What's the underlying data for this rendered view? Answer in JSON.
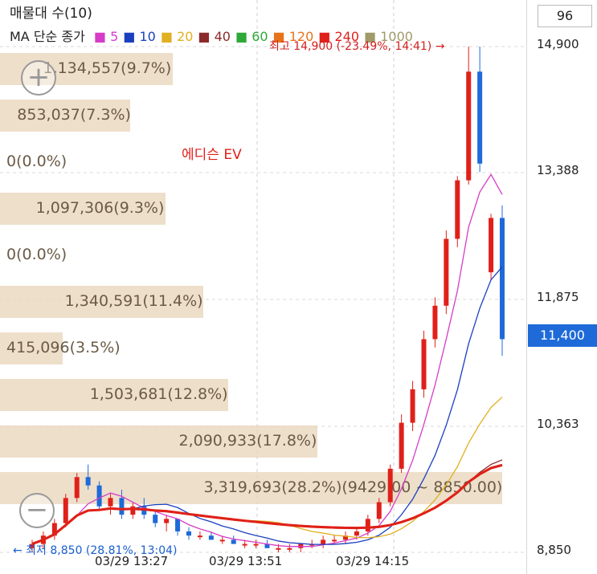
{
  "header": {
    "title": "매물대 수(10)"
  },
  "legend": {
    "label": "MA 단순 종가",
    "items": [
      {
        "name": "5",
        "color": "#d63cc8"
      },
      {
        "name": "10",
        "color": "#1b3fbf"
      },
      {
        "name": "20",
        "color": "#e0b020"
      },
      {
        "name": "40",
        "color": "#8b2a2a"
      },
      {
        "name": "60",
        "color": "#2ea838"
      },
      {
        "name": "120",
        "color": "#e8731a"
      },
      {
        "name": "240",
        "color": "#e0201a"
      },
      {
        "name": "1000",
        "color": "#a09a6a"
      }
    ]
  },
  "count_box": "96",
  "stock_name": "에디슨 EV",
  "high_label": "최고 14,900 (-23.49%, 14:41) →",
  "low_label": "← 최저 8,850 (28.81%, 13:04)",
  "current_price": "11,400",
  "y_axis": {
    "ticks": [
      "14,900",
      "13,388",
      "11,875",
      "10,363",
      "8,850"
    ]
  },
  "x_axis": {
    "ticks": [
      "03/29 13:27",
      "03/29 13:51",
      "03/29 14:15"
    ]
  },
  "volume_profile": [
    {
      "label": "1,134,557(9.7%)",
      "pct": 9.7
    },
    {
      "label": "853,037(7.3%)",
      "pct": 7.3
    },
    {
      "label": "0(0.0%)",
      "pct": 0.0
    },
    {
      "label": "1,097,306(9.3%)",
      "pct": 9.3
    },
    {
      "label": "0(0.0%)",
      "pct": 0.0
    },
    {
      "label": "1,340,591(11.4%)",
      "pct": 11.4
    },
    {
      "label": "415,096(3.5%)",
      "pct": 3.5
    },
    {
      "label": "1,503,681(12.8%)",
      "pct": 12.8
    },
    {
      "label": "2,090,933(17.8%)",
      "pct": 17.8
    },
    {
      "label": "3,319,693(28.2%)(9429.00 ~ 8850.00)",
      "pct": 28.2
    }
  ],
  "chart_data": {
    "type": "candlestick",
    "y_range": [
      8850,
      14900
    ],
    "candles": [
      {
        "o": 8900,
        "h": 9000,
        "l": 8850,
        "c": 8950
      },
      {
        "o": 8950,
        "h": 9100,
        "l": 8900,
        "c": 9050
      },
      {
        "o": 9050,
        "h": 9250,
        "l": 9000,
        "c": 9200
      },
      {
        "o": 9200,
        "h": 9550,
        "l": 9150,
        "c": 9500
      },
      {
        "o": 9500,
        "h": 9800,
        "l": 9450,
        "c": 9750
      },
      {
        "o": 9750,
        "h": 9900,
        "l": 9600,
        "c": 9650
      },
      {
        "o": 9650,
        "h": 9700,
        "l": 9350,
        "c": 9400
      },
      {
        "o": 9400,
        "h": 9550,
        "l": 9300,
        "c": 9500
      },
      {
        "o": 9500,
        "h": 9600,
        "l": 9250,
        "c": 9300
      },
      {
        "o": 9300,
        "h": 9450,
        "l": 9250,
        "c": 9400
      },
      {
        "o": 9400,
        "h": 9500,
        "l": 9250,
        "c": 9300
      },
      {
        "o": 9300,
        "h": 9350,
        "l": 9150,
        "c": 9200
      },
      {
        "o": 9200,
        "h": 9300,
        "l": 9100,
        "c": 9250
      },
      {
        "o": 9250,
        "h": 9250,
        "l": 9050,
        "c": 9100
      },
      {
        "o": 9100,
        "h": 9150,
        "l": 9000,
        "c": 9050
      },
      {
        "o": 9050,
        "h": 9100,
        "l": 9000,
        "c": 9050
      },
      {
        "o": 9050,
        "h": 9100,
        "l": 9000,
        "c": 9000
      },
      {
        "o": 9000,
        "h": 9050,
        "l": 8950,
        "c": 9000
      },
      {
        "o": 9000,
        "h": 9050,
        "l": 8950,
        "c": 8950
      },
      {
        "o": 8950,
        "h": 9000,
        "l": 8900,
        "c": 8950
      },
      {
        "o": 8950,
        "h": 9000,
        "l": 8900,
        "c": 8950
      },
      {
        "o": 8950,
        "h": 9000,
        "l": 8900,
        "c": 8900
      },
      {
        "o": 8900,
        "h": 8950,
        "l": 8850,
        "c": 8900
      },
      {
        "o": 8900,
        "h": 8950,
        "l": 8850,
        "c": 8900
      },
      {
        "o": 8900,
        "h": 8950,
        "l": 8850,
        "c": 8950
      },
      {
        "o": 8950,
        "h": 9000,
        "l": 8900,
        "c": 8950
      },
      {
        "o": 8950,
        "h": 9050,
        "l": 8900,
        "c": 9000
      },
      {
        "o": 9000,
        "h": 9050,
        "l": 8950,
        "c": 9000
      },
      {
        "o": 9000,
        "h": 9100,
        "l": 8950,
        "c": 9050
      },
      {
        "o": 9050,
        "h": 9150,
        "l": 9000,
        "c": 9100
      },
      {
        "o": 9100,
        "h": 9300,
        "l": 9050,
        "c": 9250
      },
      {
        "o": 9250,
        "h": 9500,
        "l": 9200,
        "c": 9450
      },
      {
        "o": 9450,
        "h": 9900,
        "l": 9400,
        "c": 9850
      },
      {
        "o": 9850,
        "h": 10500,
        "l": 9800,
        "c": 10400
      },
      {
        "o": 10400,
        "h": 10900,
        "l": 10300,
        "c": 10800
      },
      {
        "o": 10800,
        "h": 11500,
        "l": 10700,
        "c": 11400
      },
      {
        "o": 11400,
        "h": 11900,
        "l": 11300,
        "c": 11800
      },
      {
        "o": 11800,
        "h": 12700,
        "l": 11700,
        "c": 12600
      },
      {
        "o": 12600,
        "h": 13350,
        "l": 12500,
        "c": 13300
      },
      {
        "o": 13300,
        "h": 14900,
        "l": 13250,
        "c": 14600
      },
      {
        "o": 14600,
        "h": 14900,
        "l": 13400,
        "c": 13500
      },
      {
        "o": 12200,
        "h": 12900,
        "l": 12100,
        "c": 12850
      },
      {
        "o": 12850,
        "h": 13000,
        "l": 11200,
        "c": 11400
      }
    ]
  }
}
